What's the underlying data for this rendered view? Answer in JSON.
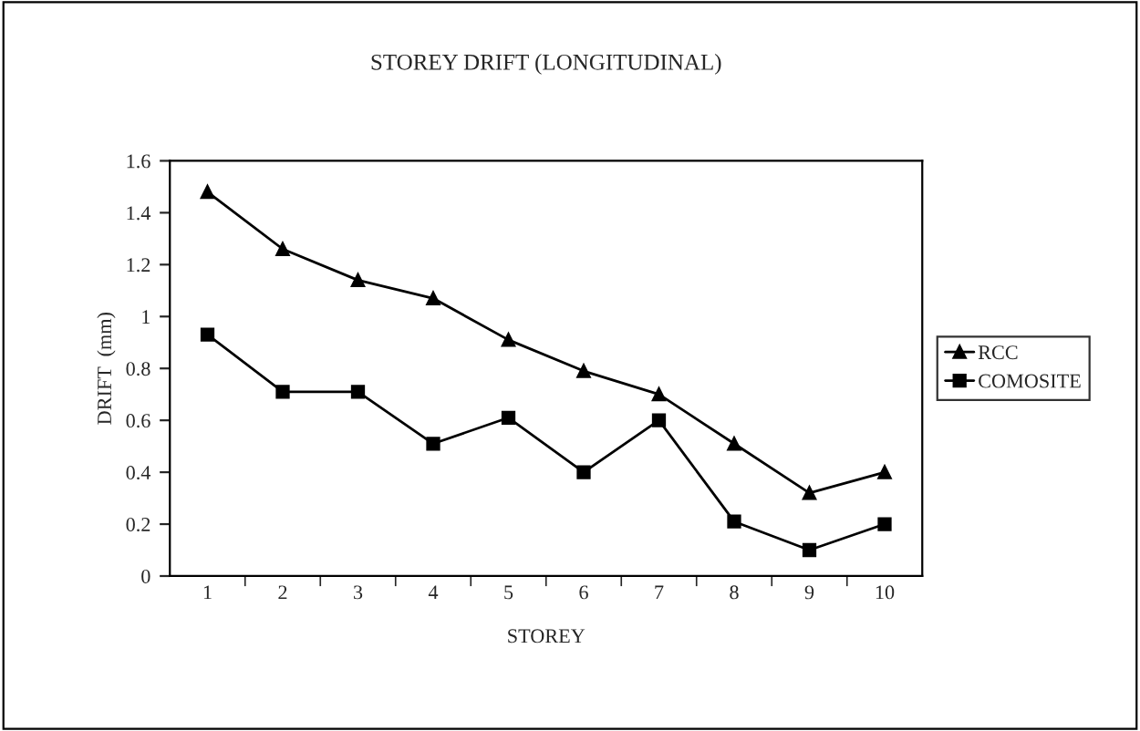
{
  "chart_data": {
    "type": "line",
    "title": "STOREY DRIFT (LONGITUDINAL)",
    "xlabel": "STOREY",
    "ylabel": "DRIFT  (mm)",
    "categories": [
      "1",
      "2",
      "3",
      "4",
      "5",
      "6",
      "7",
      "8",
      "9",
      "10"
    ],
    "series": [
      {
        "name": "RCC",
        "color": "#000000",
        "marker": "triangle",
        "values": [
          1.48,
          1.26,
          1.14,
          1.07,
          0.91,
          0.79,
          0.7,
          0.51,
          0.32,
          0.4
        ]
      },
      {
        "name": "COMOSITE",
        "color": "#000000",
        "marker": "square",
        "values": [
          0.93,
          0.71,
          0.71,
          0.51,
          0.61,
          0.4,
          0.6,
          0.21,
          0.1,
          0.2
        ]
      }
    ],
    "ylim": [
      0,
      1.6
    ],
    "yticks": [
      0,
      0.2,
      0.4,
      0.6,
      0.8,
      1,
      1.2,
      1.4,
      1.6
    ],
    "grid": false,
    "legend": "right",
    "line_style": "solid"
  }
}
